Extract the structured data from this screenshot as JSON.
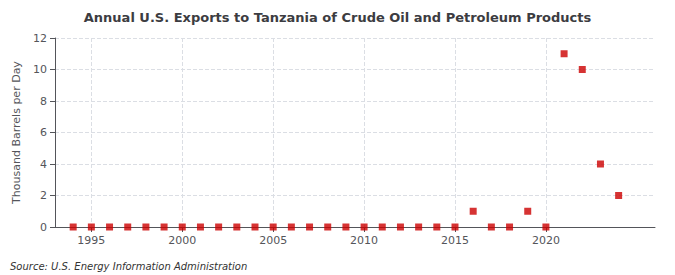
{
  "chart_data": {
    "type": "scatter",
    "title": "Annual U.S. Exports to Tanzania of Crude Oil and Petroleum Products",
    "ylabel": "Thousand Barrels per Day",
    "annotation": "Source: U.S. Energy Information Administration",
    "x": [
      1994,
      1995,
      1996,
      1997,
      1998,
      1999,
      2000,
      2001,
      2002,
      2003,
      2004,
      2005,
      2006,
      2007,
      2008,
      2009,
      2010,
      2011,
      2012,
      2013,
      2014,
      2015,
      2016,
      2017,
      2018,
      2019,
      2020,
      2021,
      2022,
      2023,
      2024
    ],
    "values": [
      0,
      0,
      0,
      0,
      0,
      0,
      0,
      0,
      0,
      0,
      0,
      0,
      0,
      0,
      0,
      0,
      0,
      0,
      0,
      0,
      0,
      0,
      1,
      0,
      0,
      1,
      0,
      11,
      10,
      4,
      2
    ],
    "color": "#cc0000",
    "marker": "square",
    "xlim": [
      1993,
      2026
    ],
    "xticks": [
      1995,
      2000,
      2005,
      2010,
      2015,
      2020
    ],
    "ylim": [
      0,
      12
    ],
    "yticks": [
      0,
      2,
      4,
      6,
      8,
      10,
      12
    ],
    "grid": true
  }
}
